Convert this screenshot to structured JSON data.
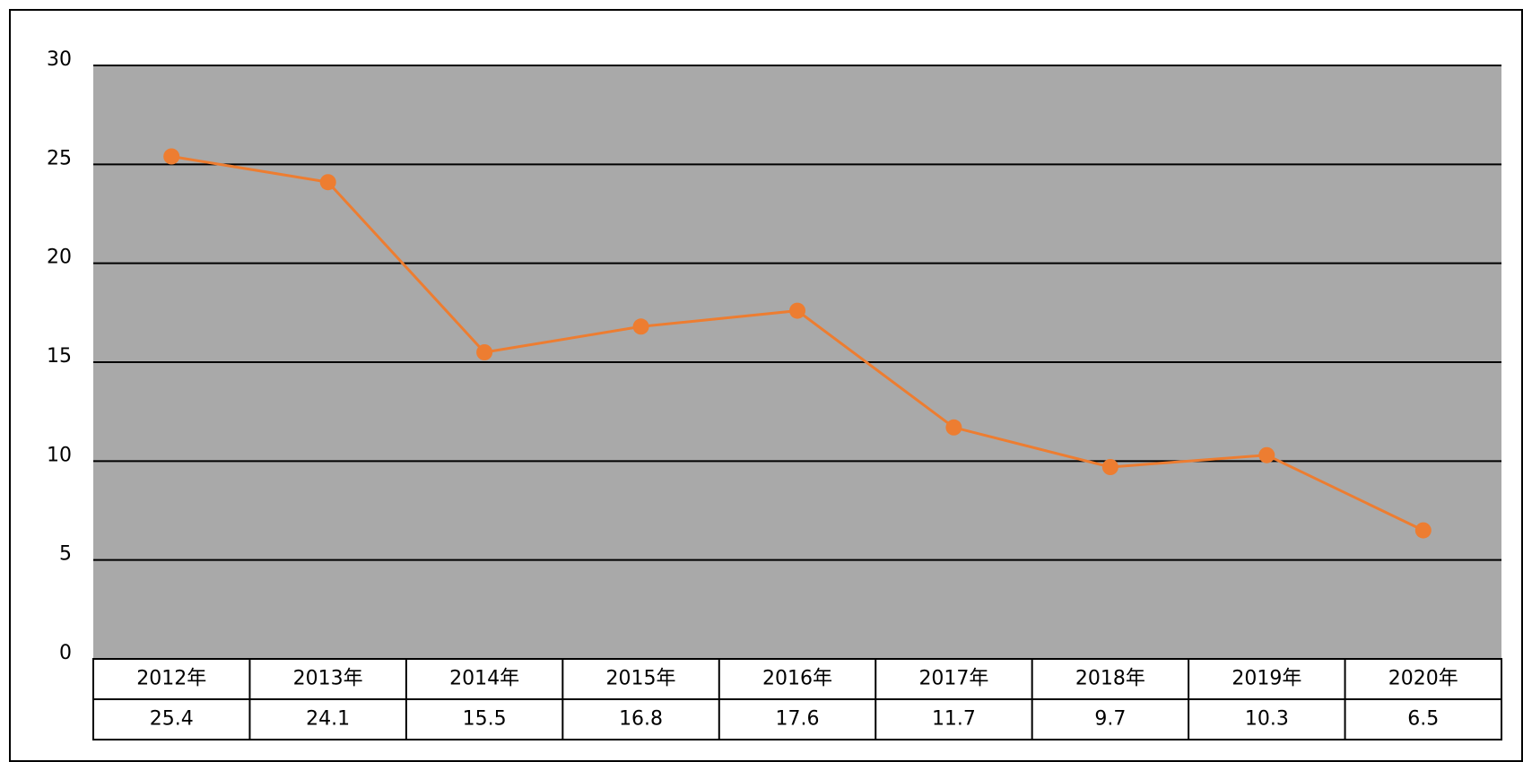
{
  "chart_data": {
    "type": "line",
    "categories": [
      "2012年",
      "2013年",
      "2014年",
      "2015年",
      "2016年",
      "2017年",
      "2018年",
      "2019年",
      "2020年"
    ],
    "values": [
      25.4,
      24.1,
      15.5,
      16.8,
      17.6,
      11.7,
      9.7,
      10.3,
      6.5
    ],
    "color": "#ed7d31",
    "ylim": [
      0,
      30
    ],
    "yticks": [
      0,
      5,
      10,
      15,
      20,
      25,
      30
    ],
    "grid": true
  }
}
